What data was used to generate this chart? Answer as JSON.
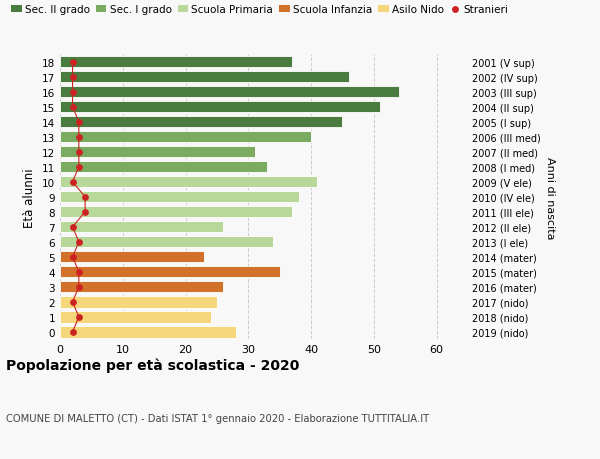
{
  "ages": [
    18,
    17,
    16,
    15,
    14,
    13,
    12,
    11,
    10,
    9,
    8,
    7,
    6,
    5,
    4,
    3,
    2,
    1,
    0
  ],
  "years": [
    "2001 (V sup)",
    "2002 (IV sup)",
    "2003 (III sup)",
    "2004 (II sup)",
    "2005 (I sup)",
    "2006 (III med)",
    "2007 (II med)",
    "2008 (I med)",
    "2009 (V ele)",
    "2010 (IV ele)",
    "2011 (III ele)",
    "2012 (II ele)",
    "2013 (I ele)",
    "2014 (mater)",
    "2015 (mater)",
    "2016 (mater)",
    "2017 (nido)",
    "2018 (nido)",
    "2019 (nido)"
  ],
  "values": [
    37,
    46,
    54,
    51,
    45,
    40,
    31,
    33,
    41,
    38,
    37,
    26,
    34,
    23,
    35,
    26,
    25,
    24,
    28
  ],
  "foreigners": [
    2,
    2,
    2,
    2,
    3,
    3,
    3,
    3,
    2,
    4,
    4,
    2,
    3,
    2,
    3,
    3,
    2,
    3,
    2
  ],
  "bar_colors": [
    "#4a7c3f",
    "#4a7c3f",
    "#4a7c3f",
    "#4a7c3f",
    "#4a7c3f",
    "#7aab60",
    "#7aab60",
    "#7aab60",
    "#b8d89a",
    "#b8d89a",
    "#b8d89a",
    "#b8d89a",
    "#b8d89a",
    "#d2722a",
    "#d2722a",
    "#d2722a",
    "#f5d67a",
    "#f5d67a",
    "#f5d67a"
  ],
  "xlim": [
    0,
    65
  ],
  "ylabel": "Età alunni",
  "right_ylabel": "Anni di nascita",
  "title": "Popolazione per età scolastica - 2020",
  "subtitle": "COMUNE DI MALETTO (CT) - Dati ISTAT 1° gennaio 2020 - Elaborazione TUTTITALIA.IT",
  "legend_labels": [
    "Sec. II grado",
    "Sec. I grado",
    "Scuola Primaria",
    "Scuola Infanzia",
    "Asilo Nido",
    "Stranieri"
  ],
  "legend_colors": [
    "#4a7c3f",
    "#7aab60",
    "#b8d89a",
    "#d2722a",
    "#f5d67a",
    "#cc2222"
  ],
  "foreigner_color": "#cc2222",
  "grid_color": "#cccccc",
  "bg_color": "#f8f8f8"
}
